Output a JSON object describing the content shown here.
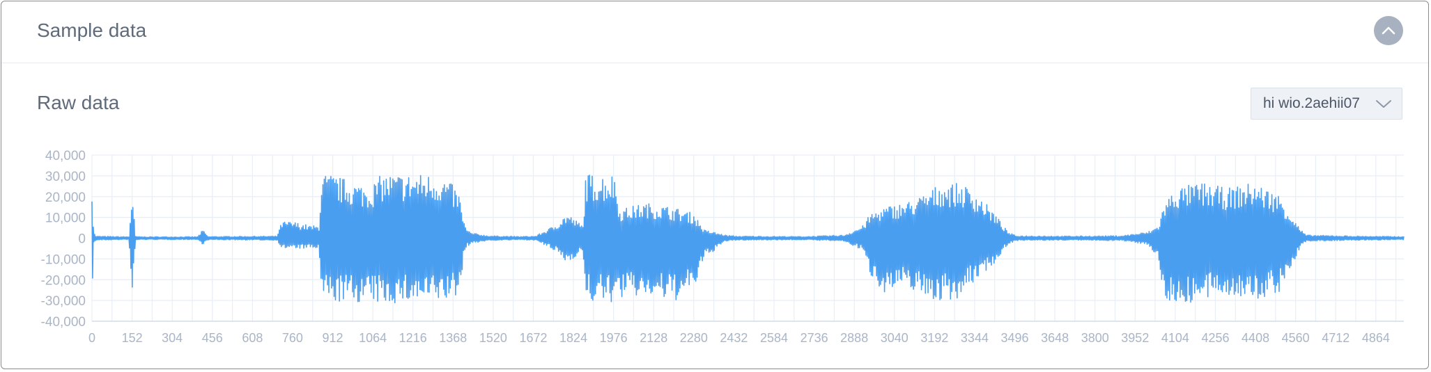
{
  "card": {
    "title": "Sample data"
  },
  "section": {
    "title": "Raw data"
  },
  "sample_select": {
    "value": "hi wio.2aehii07"
  },
  "icons": {
    "collapse": "chevron-up-icon",
    "dropdown": "chevron-down-icon"
  },
  "colors": {
    "series": "#4a9ef0",
    "grid": "#e9eef5",
    "tick_text": "#aab5c6",
    "title_text": "#5f6a7b",
    "collapse_bg": "#a7b1c0"
  },
  "chart_data": {
    "type": "line",
    "title": "",
    "xlabel": "",
    "ylabel": "",
    "ylim": [
      -40000,
      40000
    ],
    "xlim": [
      0,
      4970
    ],
    "grid": true,
    "legend": "none",
    "y_ticks": [
      40000,
      30000,
      20000,
      10000,
      0,
      -10000,
      -20000,
      -30000,
      -40000
    ],
    "y_tick_labels": [
      "40,000",
      "30,000",
      "20,000",
      "10,000",
      "0",
      "-10,000",
      "-20,000",
      "-30,000",
      "-40,000"
    ],
    "x_ticks": [
      0,
      152,
      304,
      456,
      608,
      760,
      912,
      1064,
      1216,
      1368,
      1520,
      1672,
      1824,
      1976,
      2128,
      2280,
      2432,
      2584,
      2736,
      2888,
      3040,
      3192,
      3344,
      3496,
      3648,
      3800,
      3952,
      4104,
      4256,
      4408,
      4560,
      4712,
      4864
    ],
    "series": [
      {
        "envelope": {
          "x": [
            0,
            6,
            15,
            140,
            152,
            165,
            180,
            400,
            420,
            440,
            700,
            720,
            760,
            830,
            860,
            870,
            900,
            1050,
            1100,
            1200,
            1300,
            1350,
            1390,
            1410,
            1420,
            1440,
            1500,
            1620,
            1680,
            1750,
            1800,
            1860,
            1870,
            1980,
            2000,
            2100,
            2200,
            2280,
            2320,
            2400,
            2440,
            2700,
            2850,
            2920,
            2950,
            3000,
            3100,
            3150,
            3220,
            3300,
            3350,
            3420,
            3470,
            3500,
            3700,
            3900,
            4000,
            4040,
            4060,
            4100,
            4200,
            4300,
            4400,
            4500,
            4560,
            4580,
            4600,
            4800,
            4970
          ],
          "upper": [
            32000,
            3000,
            1000,
            700,
            23000,
            900,
            700,
            700,
            4000,
            800,
            1000,
            8000,
            8000,
            6000,
            6000,
            31000,
            31000,
            25000,
            31000,
            31000,
            31000,
            28000,
            22000,
            8000,
            4000,
            2500,
            1200,
            800,
            1000,
            6000,
            12000,
            6000,
            31000,
            31000,
            14000,
            17000,
            15000,
            12000,
            4000,
            1500,
            1000,
            800,
            1500,
            6000,
            12000,
            15000,
            18000,
            21000,
            27000,
            26000,
            22000,
            12000,
            3000,
            1200,
            1000,
            1200,
            3000,
            6000,
            16000,
            24000,
            27000,
            24000,
            27000,
            21000,
            8000,
            4000,
            1500,
            1000,
            800
          ],
          "lower": [
            -32000,
            -3000,
            -1000,
            -700,
            -31000,
            -900,
            -700,
            -700,
            -3000,
            -800,
            -1000,
            -5000,
            -5000,
            -5000,
            -5000,
            -30000,
            -31000,
            -31000,
            -32000,
            -31000,
            -31000,
            -30000,
            -28000,
            -8000,
            -4000,
            -2500,
            -1200,
            -800,
            -1000,
            -6000,
            -12000,
            -6000,
            -31000,
            -31000,
            -29000,
            -28000,
            -31000,
            -25000,
            -10000,
            -1500,
            -1000,
            -800,
            -1500,
            -6000,
            -18000,
            -26000,
            -24000,
            -28000,
            -31000,
            -28000,
            -20000,
            -12000,
            -3000,
            -1200,
            -1000,
            -1200,
            -3000,
            -10000,
            -29000,
            -32000,
            -31000,
            -27000,
            -31000,
            -26000,
            -10000,
            -4000,
            -1500,
            -1000,
            -800
          ]
        }
      }
    ]
  }
}
